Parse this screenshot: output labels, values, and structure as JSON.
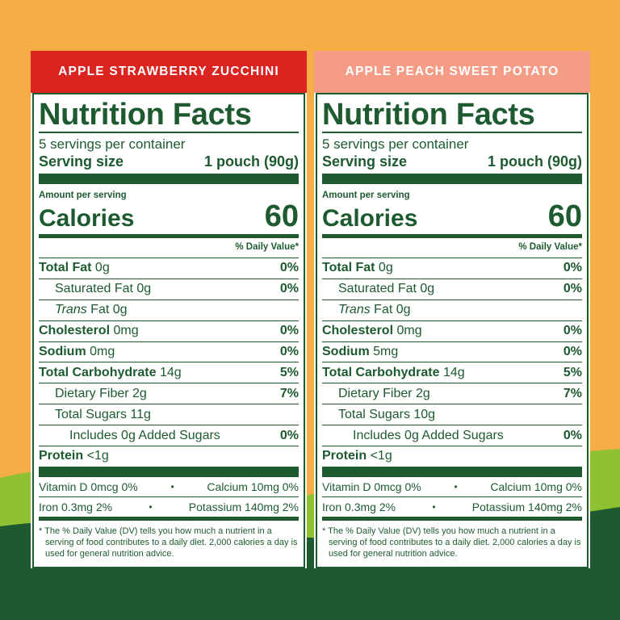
{
  "colors": {
    "dark_green": "#1d5a2f",
    "orange": "#f6ad45",
    "lime": "#8ec232",
    "banner_left": "#db2320",
    "banner_right": "#f59c86"
  },
  "panels": [
    {
      "flavor": "APPLE STRAWBERRY ZUCCHINI",
      "title": "Nutrition Facts",
      "servings_per_container": "5 servings per container",
      "serving_size_label": "Serving size",
      "serving_size_value": "1 pouch (90g)",
      "amount_per_serving": "Amount per serving",
      "calories_label": "Calories",
      "calories_value": "60",
      "dv_header": "% Daily Value*",
      "total_fat": {
        "label": "Total Fat",
        "amount": " 0g",
        "dv": "0%"
      },
      "saturated_fat": {
        "label": "Saturated Fat 0g",
        "dv": "0%"
      },
      "trans_fat": {
        "label_italic": "Trans",
        "label_rest": " Fat 0g"
      },
      "cholesterol": {
        "label": "Cholesterol",
        "amount": " 0mg",
        "dv": "0%"
      },
      "sodium": {
        "label": "Sodium",
        "amount": " 0mg",
        "dv": "0%"
      },
      "total_carbohydrate": {
        "label": "Total Carbohydrate",
        "amount": " 14g",
        "dv": "5%"
      },
      "dietary_fiber": {
        "label": "Dietary Fiber 2g",
        "dv": "7%"
      },
      "total_sugars": {
        "label": "Total Sugars 11g"
      },
      "added_sugars": {
        "label": "Includes 0g Added Sugars",
        "dv": "0%"
      },
      "protein": {
        "label": "Protein",
        "amount": " <1g"
      },
      "vitamin_d": "Vitamin D 0mcg 0%",
      "calcium": "Calcium 10mg 0%",
      "iron": "Iron 0.3mg 2%",
      "potassium": "Potassium 140mg 2%",
      "bullet": "•",
      "footnote": "* The % Daily Value (DV) tells you how much a nutrient in a serving of food contributes to a daily diet. 2,000 calories a day is used for general nutrition advice."
    },
    {
      "flavor": "APPLE PEACH SWEET POTATO",
      "title": "Nutrition Facts",
      "servings_per_container": "5 servings per container",
      "serving_size_label": "Serving size",
      "serving_size_value": "1 pouch (90g)",
      "amount_per_serving": "Amount per serving",
      "calories_label": "Calories",
      "calories_value": "60",
      "dv_header": "% Daily Value*",
      "total_fat": {
        "label": "Total Fat",
        "amount": " 0g",
        "dv": "0%"
      },
      "saturated_fat": {
        "label": "Saturated Fat 0g",
        "dv": "0%"
      },
      "trans_fat": {
        "label_italic": "Trans",
        "label_rest": " Fat 0g"
      },
      "cholesterol": {
        "label": "Cholesterol",
        "amount": " 0mg",
        "dv": "0%"
      },
      "sodium": {
        "label": "Sodium",
        "amount": " 5mg",
        "dv": "0%"
      },
      "total_carbohydrate": {
        "label": "Total Carbohydrate",
        "amount": " 14g",
        "dv": "5%"
      },
      "dietary_fiber": {
        "label": "Dietary Fiber 2g",
        "dv": "7%"
      },
      "total_sugars": {
        "label": "Total Sugars 10g"
      },
      "added_sugars": {
        "label": "Includes 0g Added Sugars",
        "dv": "0%"
      },
      "protein": {
        "label": "Protein",
        "amount": " <1g"
      },
      "vitamin_d": "Vitamin D 0mcg 0%",
      "calcium": "Calcium 10mg 0%",
      "iron": "Iron 0.3mg 2%",
      "potassium": "Potassium 140mg 2%",
      "bullet": "•",
      "footnote": "* The % Daily Value (DV) tells you how much a nutrient in a serving of food contributes to a daily diet. 2,000 calories a day is used for general nutrition advice."
    }
  ]
}
